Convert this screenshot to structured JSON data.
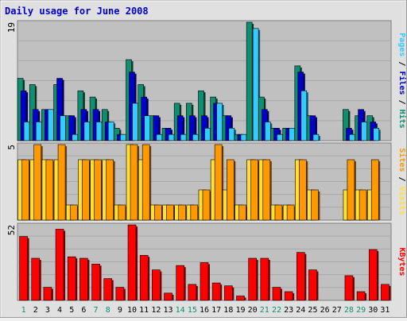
{
  "chart_data": {
    "type": "bar",
    "title": "Daily usage for June 2008",
    "categories": [
      "1",
      "2",
      "3",
      "4",
      "5",
      "6",
      "7",
      "8",
      "9",
      "10",
      "11",
      "12",
      "13",
      "14",
      "15",
      "16",
      "17",
      "18",
      "19",
      "20",
      "21",
      "22",
      "23",
      "24",
      "25",
      "26",
      "27",
      "28",
      "29",
      "30",
      "31"
    ],
    "weekend_days": [
      1,
      7,
      8,
      14,
      15,
      21,
      22,
      28,
      29
    ],
    "panels": [
      {
        "id": "hits",
        "ymax": 19,
        "ymax_label": "19",
        "side_label_parts": [
          {
            "text": "Pages",
            "color": "#33ccff"
          },
          {
            "text": " / ",
            "color": "#000000"
          },
          {
            "text": "Files",
            "color": "#0000cc"
          },
          {
            "text": " / ",
            "color": "#000000"
          },
          {
            "text": "Hits",
            "color": "#0f8f6f"
          }
        ],
        "series": [
          {
            "name": "Hits",
            "color": "#0f8f6f",
            "values": [
              10,
              9,
              5,
              9,
              4,
              8,
              7,
              5,
              2,
              13,
              9,
              4,
              2,
              6,
              6,
              8,
              7,
              4,
              1,
              19,
              7,
              2,
              2,
              12,
              4,
              0,
              0,
              5,
              4,
              4,
              0
            ]
          },
          {
            "name": "Files",
            "color": "#0000cc",
            "values": [
              8,
              5,
              5,
              10,
              4,
              5,
              5,
              3,
              1,
              11,
              7,
              4,
              2,
              4,
              4,
              4,
              6,
              4,
              1,
              0,
              5,
              2,
              2,
              11,
              4,
              0,
              0,
              2,
              5,
              3,
              0
            ]
          },
          {
            "name": "Pages",
            "color": "#33ccff",
            "values": [
              3,
              3,
              5,
              4,
              1,
              3,
              3,
              3,
              1,
              6,
              4,
              1,
              1,
              1,
              1,
              2,
              6,
              2,
              1,
              18,
              3,
              1,
              2,
              8,
              1,
              0,
              0,
              1,
              3,
              2,
              0
            ]
          }
        ]
      },
      {
        "id": "visits",
        "ymax": 5,
        "ymax_label": "5",
        "side_label_parts": [
          {
            "text": "Sites",
            "color": "#ff9900"
          },
          {
            "text": " / ",
            "color": "#000000"
          },
          {
            "text": "Visits",
            "color": "#ffe033"
          }
        ],
        "series": [
          {
            "name": "Visits",
            "color": "#ffe033",
            "values": [
              4,
              4,
              4,
              4,
              1,
              4,
              4,
              4,
              1,
              5,
              4,
              1,
              1,
              1,
              1,
              2,
              4,
              2,
              1,
              4,
              4,
              1,
              1,
              4,
              2,
              0,
              0,
              2,
              2,
              2,
              0
            ]
          },
          {
            "name": "Sites",
            "color": "#ff9900",
            "values": [
              4,
              5,
              4,
              5,
              1,
              4,
              4,
              4,
              1,
              5,
              5,
              1,
              1,
              1,
              1,
              2,
              5,
              4,
              1,
              4,
              4,
              1,
              1,
              4,
              2,
              0,
              0,
              4,
              2,
              4,
              0
            ]
          }
        ]
      },
      {
        "id": "kbytes",
        "ymax": 52,
        "ymax_label": "52",
        "side_label_parts": [
          {
            "text": "KBytes",
            "color": "#ff0000"
          }
        ],
        "series": [
          {
            "name": "KBytes",
            "color": "#ff0000",
            "values": [
              44,
              29,
              9,
              49,
              30,
              29,
              25,
              15,
              9,
              52,
              31,
              21,
              5,
              24,
              11,
              26,
              12,
              10,
              3,
              29,
              29,
              9,
              6,
              33,
              21,
              0,
              0,
              17,
              6,
              35,
              11
            ]
          }
        ]
      }
    ]
  }
}
